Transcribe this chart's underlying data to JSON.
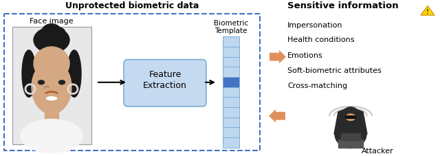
{
  "title_left": "Unprotected biometric data",
  "title_right": "Sensitive information",
  "face_label": "Face image",
  "box_label": [
    "Feature",
    "Extraction"
  ],
  "template_label_1": "Biometric",
  "template_label_2": "Template",
  "attacker_label": "Attacker",
  "sensitive_items": [
    "Impersonation",
    "Health conditions",
    "Emotions",
    "Soft-biometric attributes",
    "Cross-matching"
  ],
  "arrow_color": "#E0905A",
  "box_fill": "#C5D9F0",
  "box_edge": "#7BAFD4",
  "template_fill_dark": "#4472C4",
  "template_fill_light": "#BDD7EE",
  "dashed_box_color": "#4472C4",
  "background": "#ffffff",
  "text_color": "#000000",
  "face_bg": "#e8e8e8",
  "face_border": "#999999"
}
